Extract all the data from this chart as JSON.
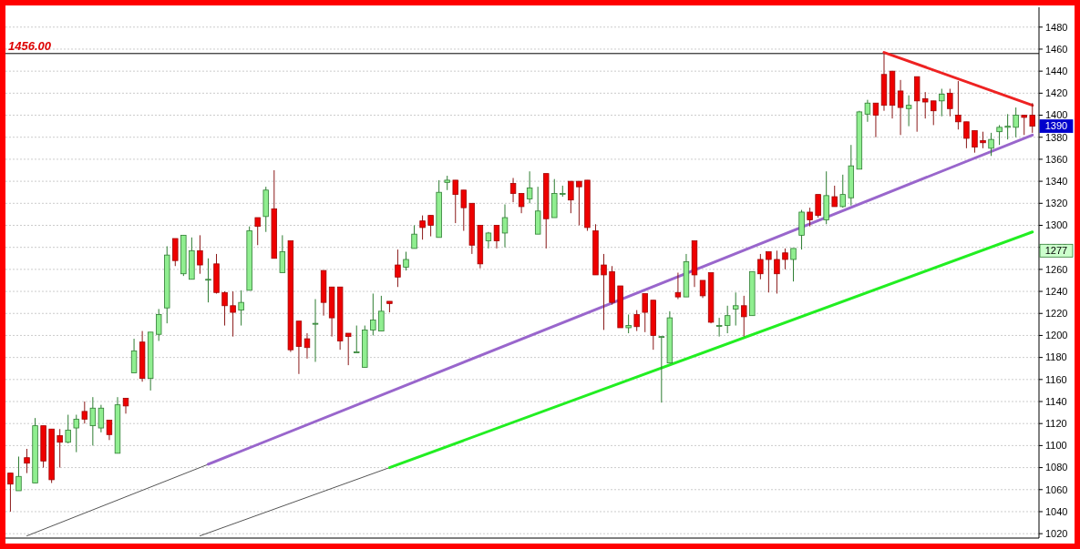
{
  "chart_data": {
    "type": "candlestick",
    "categories": [
      null,
      null,
      null,
      null,
      null,
      null,
      null,
      null,
      null,
      null,
      null,
      null,
      null,
      null,
      null,
      null,
      null,
      null,
      null,
      null,
      null,
      null,
      null,
      null,
      null,
      null,
      null,
      null,
      null,
      null,
      null,
      null,
      null,
      null,
      null,
      null,
      null,
      null,
      null,
      null,
      null,
      null,
      null,
      null,
      null,
      null,
      null,
      null,
      null,
      null,
      null,
      null,
      null,
      null,
      null,
      null,
      null,
      null,
      null,
      null,
      null,
      null,
      null,
      null,
      null,
      null,
      null,
      null,
      null,
      null,
      null,
      null,
      null,
      null,
      null,
      null,
      null,
      null,
      null,
      null,
      null,
      null,
      null,
      null,
      null,
      null,
      null,
      null,
      null,
      null,
      null,
      null,
      null,
      null,
      null,
      null,
      null,
      null,
      null,
      null,
      null,
      null,
      null,
      null,
      null,
      null,
      null,
      null,
      null,
      null,
      null,
      null,
      null,
      null,
      null,
      null,
      null,
      null,
      null,
      null,
      null,
      null,
      null,
      null,
      null
    ],
    "ohlc": [
      [
        1075,
        1075,
        1040,
        1065
      ],
      [
        1059,
        1090,
        1059,
        1072
      ],
      [
        1089,
        1097,
        1075,
        1084
      ],
      [
        1066,
        1125,
        1066,
        1118
      ],
      [
        1118,
        1118,
        1080,
        1086
      ],
      [
        1115,
        1115,
        1066,
        1069
      ],
      [
        1109,
        1115,
        1080,
        1103
      ],
      [
        1103,
        1128,
        1102,
        1114
      ],
      [
        1116,
        1128,
        1094,
        1124
      ],
      [
        1131,
        1140,
        1120,
        1124
      ],
      [
        1118,
        1144,
        1100,
        1134
      ],
      [
        1116,
        1137,
        1112,
        1134
      ],
      [
        1123,
        1123,
        1105,
        1110
      ],
      [
        1093,
        1144,
        1093,
        1137
      ],
      [
        1143,
        1143,
        1129,
        1136
      ],
      [
        1166,
        1197,
        1166,
        1186
      ],
      [
        1194,
        1204,
        1158,
        1161
      ],
      [
        1161,
        1203,
        1150,
        1203
      ],
      [
        1201,
        1224,
        1195,
        1219
      ],
      [
        1225,
        1281,
        1211,
        1273
      ],
      [
        1288,
        1288,
        1263,
        1268
      ],
      [
        1256,
        1291,
        1254,
        1291
      ],
      [
        1251,
        1289,
        1251,
        1277
      ],
      [
        1277,
        1291,
        1256,
        1264
      ],
      [
        1251,
        1270,
        1230,
        1251
      ],
      [
        1265,
        1274,
        1238,
        1239
      ],
      [
        1239,
        1240,
        1209,
        1227
      ],
      [
        1227,
        1240,
        1199,
        1221
      ],
      [
        1223,
        1241,
        1209,
        1230
      ],
      [
        1241,
        1299,
        1241,
        1295
      ],
      [
        1307,
        1307,
        1282,
        1299
      ],
      [
        1308,
        1335,
        1294,
        1332
      ],
      [
        1315,
        1350,
        1270,
        1270
      ],
      [
        1257,
        1291,
        1257,
        1276
      ],
      [
        1286,
        1286,
        1185,
        1187
      ],
      [
        1213,
        1213,
        1165,
        1190
      ],
      [
        1197,
        1202,
        1179,
        1189
      ],
      [
        1211,
        1233,
        1176,
        1211
      ],
      [
        1259,
        1259,
        1218,
        1230
      ],
      [
        1244,
        1244,
        1199,
        1216
      ],
      [
        1244,
        1244,
        1187,
        1195
      ],
      [
        1202,
        1202,
        1173,
        1199
      ],
      [
        1185,
        1209,
        1185,
        1185
      ],
      [
        1171,
        1209,
        1171,
        1205
      ],
      [
        1205,
        1238,
        1200,
        1214
      ],
      [
        1204,
        1236,
        1204,
        1222
      ],
      [
        1231,
        1231,
        1221,
        1229
      ],
      [
        1264,
        1278,
        1244,
        1253
      ],
      [
        1262,
        1276,
        1259,
        1269
      ],
      [
        1279,
        1300,
        1279,
        1292
      ],
      [
        1304,
        1309,
        1287,
        1298
      ],
      [
        1309,
        1309,
        1290,
        1300
      ],
      [
        1289,
        1341,
        1289,
        1330
      ],
      [
        1339,
        1345,
        1332,
        1341
      ],
      [
        1341,
        1341,
        1302,
        1328
      ],
      [
        1332,
        1332,
        1295,
        1316
      ],
      [
        1320,
        1320,
        1274,
        1282
      ],
      [
        1300,
        1300,
        1261,
        1265
      ],
      [
        1286,
        1294,
        1279,
        1293
      ],
      [
        1300,
        1300,
        1279,
        1286
      ],
      [
        1293,
        1319,
        1280,
        1307
      ],
      [
        1338,
        1343,
        1321,
        1329
      ],
      [
        1329,
        1329,
        1311,
        1317
      ],
      [
        1324,
        1349,
        1320,
        1334
      ],
      [
        1292,
        1335,
        1292,
        1313
      ],
      [
        1347,
        1347,
        1279,
        1306
      ],
      [
        1307,
        1342,
        1307,
        1329
      ],
      [
        1329,
        1336,
        1326,
        1329
      ],
      [
        1340,
        1340,
        1311,
        1323
      ],
      [
        1340,
        1340,
        1300,
        1335
      ],
      [
        1341,
        1341,
        1295,
        1298
      ],
      [
        1295,
        1301,
        1255,
        1255
      ],
      [
        1264,
        1274,
        1205,
        1255
      ],
      [
        1258,
        1263,
        1228,
        1230
      ],
      [
        1245,
        1245,
        1207,
        1207
      ],
      [
        1207,
        1219,
        1202,
        1209
      ],
      [
        1219,
        1223,
        1204,
        1208
      ],
      [
        1238,
        1238,
        1203,
        1221
      ],
      [
        1232,
        1232,
        1187,
        1200
      ],
      [
        1199,
        1199,
        1139,
        1199
      ],
      [
        1175,
        1222,
        1175,
        1216
      ],
      [
        1239,
        1257,
        1233,
        1235
      ],
      [
        1235,
        1274,
        1235,
        1267
      ],
      [
        1286,
        1286,
        1244,
        1255
      ],
      [
        1250,
        1250,
        1234,
        1236
      ],
      [
        1257,
        1257,
        1211,
        1212
      ],
      [
        1209,
        1216,
        1199,
        1209
      ],
      [
        1209,
        1227,
        1202,
        1218
      ],
      [
        1224,
        1239,
        1209,
        1227
      ],
      [
        1227,
        1236,
        1199,
        1217
      ],
      [
        1218,
        1258,
        1218,
        1258
      ],
      [
        1269,
        1274,
        1251,
        1256
      ],
      [
        1276,
        1276,
        1239,
        1269
      ],
      [
        1269,
        1277,
        1238,
        1256
      ],
      [
        1275,
        1279,
        1260,
        1269
      ],
      [
        1269,
        1279,
        1249,
        1279
      ],
      [
        1291,
        1314,
        1278,
        1312
      ],
      [
        1312,
        1316,
        1299,
        1305
      ],
      [
        1328,
        1328,
        1307,
        1309
      ],
      [
        1305,
        1349,
        1301,
        1327
      ],
      [
        1326,
        1336,
        1317,
        1317
      ],
      [
        1317,
        1346,
        1316,
        1328
      ],
      [
        1325,
        1373,
        1318,
        1354
      ],
      [
        1351,
        1404,
        1351,
        1403
      ],
      [
        1401,
        1414,
        1394,
        1411
      ],
      [
        1411,
        1411,
        1380,
        1400
      ],
      [
        1437,
        1456,
        1404,
        1409
      ],
      [
        1440,
        1440,
        1397,
        1409
      ],
      [
        1422,
        1432,
        1382,
        1407
      ],
      [
        1406,
        1418,
        1390,
        1409
      ],
      [
        1435,
        1435,
        1385,
        1413
      ],
      [
        1415,
        1421,
        1397,
        1412
      ],
      [
        1413,
        1413,
        1391,
        1404
      ],
      [
        1413,
        1424,
        1399,
        1419
      ],
      [
        1420,
        1424,
        1399,
        1406
      ],
      [
        1400,
        1431,
        1387,
        1394
      ],
      [
        1394,
        1394,
        1370,
        1379
      ],
      [
        1386,
        1386,
        1366,
        1371
      ],
      [
        1377,
        1385,
        1370,
        1375
      ],
      [
        1370,
        1384,
        1363,
        1378
      ],
      [
        1385,
        1391,
        1373,
        1389
      ],
      [
        1389,
        1401,
        1378,
        1390
      ],
      [
        1389,
        1407,
        1380,
        1400
      ],
      [
        1400,
        1400,
        1382,
        1398
      ],
      [
        1400,
        1411,
        1384,
        1390
      ]
    ],
    "series": [
      {
        "type": "line",
        "color": "#555555",
        "values": [
          null,
          null,
          1018,
          null,
          null,
          null,
          null,
          null,
          null,
          null,
          null,
          null,
          null,
          null,
          null,
          null,
          null,
          null,
          null,
          null,
          null,
          null,
          null,
          null,
          1083,
          null,
          null,
          null,
          null,
          null,
          null,
          null,
          null,
          null,
          null,
          null,
          null,
          null,
          null,
          null,
          null,
          null,
          null,
          null,
          null,
          null,
          null,
          null,
          null,
          null,
          null,
          null,
          null,
          null,
          null,
          null,
          null,
          null,
          null,
          null,
          null,
          null,
          null,
          null,
          null,
          null,
          null,
          null,
          null,
          null,
          null,
          null,
          null,
          null,
          null,
          null,
          null,
          null,
          null,
          null,
          null,
          null,
          null,
          null,
          null,
          null,
          null,
          null,
          null,
          null,
          null,
          null,
          null,
          null,
          null,
          null,
          null,
          null,
          null,
          null,
          null,
          null,
          null,
          null,
          null,
          null,
          null,
          null,
          null,
          null,
          null,
          null,
          null,
          null,
          null,
          null,
          null,
          null,
          null,
          null,
          null,
          null,
          null,
          null,
          null
        ]
      },
      {
        "type": "line",
        "color": "#9966cc",
        "values": [
          null,
          null,
          null,
          null,
          null,
          null,
          null,
          null,
          null,
          null,
          null,
          null,
          null,
          null,
          null,
          null,
          null,
          null,
          null,
          null,
          null,
          null,
          null,
          null,
          1083,
          null,
          null,
          null,
          null,
          null,
          null,
          null,
          null,
          null,
          null,
          null,
          null,
          null,
          null,
          null,
          null,
          null,
          null,
          null,
          null,
          null,
          null,
          null,
          null,
          null,
          null,
          null,
          null,
          null,
          null,
          null,
          null,
          null,
          null,
          null,
          null,
          null,
          null,
          null,
          null,
          null,
          null,
          null,
          null,
          null,
          null,
          null,
          null,
          null,
          null,
          null,
          null,
          null,
          null,
          null,
          null,
          null,
          null,
          null,
          null,
          null,
          null,
          null,
          null,
          null,
          null,
          null,
          null,
          null,
          null,
          null,
          null,
          null,
          null,
          null,
          null,
          null,
          null,
          null,
          null,
          null,
          null,
          null,
          null,
          null,
          null,
          null,
          null,
          null,
          null,
          null,
          null,
          null,
          null,
          null,
          null,
          null,
          null,
          null,
          1382
        ]
      },
      {
        "type": "line",
        "color": "#555555",
        "values": [
          null,
          null,
          null,
          null,
          null,
          null,
          null,
          null,
          null,
          null,
          null,
          null,
          null,
          null,
          null,
          null,
          null,
          null,
          null,
          null,
          null,
          null,
          null,
          1018,
          null,
          null,
          null,
          null,
          null,
          null,
          null,
          null,
          null,
          null,
          null,
          null,
          null,
          null,
          null,
          null,
          null,
          null,
          null,
          null,
          null,
          null,
          1080,
          null,
          null,
          null,
          null,
          null,
          null,
          null,
          null,
          null,
          null,
          null,
          null,
          null,
          null,
          null,
          null,
          null,
          null,
          null,
          null,
          null,
          null,
          null,
          null,
          null,
          null,
          null,
          null,
          null,
          null,
          null,
          null,
          null,
          null,
          null,
          null,
          null,
          null,
          null,
          null,
          null,
          null,
          null,
          null,
          null,
          null,
          null,
          null,
          null,
          null,
          null,
          null,
          null,
          null,
          null,
          null,
          null,
          null,
          null,
          null,
          null,
          null,
          null,
          null,
          null,
          null,
          null,
          null,
          null,
          null,
          null,
          null,
          null,
          null,
          null,
          null,
          null,
          null
        ]
      },
      {
        "type": "line",
        "color": "#22ee22",
        "values": [
          null,
          null,
          null,
          null,
          null,
          null,
          null,
          null,
          null,
          null,
          null,
          null,
          null,
          null,
          null,
          null,
          null,
          null,
          null,
          null,
          null,
          null,
          null,
          null,
          null,
          null,
          null,
          null,
          null,
          null,
          null,
          null,
          null,
          null,
          null,
          null,
          null,
          null,
          null,
          null,
          null,
          null,
          null,
          null,
          null,
          null,
          1080,
          null,
          null,
          null,
          null,
          null,
          null,
          null,
          null,
          null,
          null,
          null,
          null,
          null,
          null,
          null,
          null,
          null,
          null,
          null,
          null,
          null,
          null,
          null,
          null,
          null,
          null,
          null,
          null,
          null,
          null,
          null,
          null,
          null,
          null,
          null,
          null,
          null,
          null,
          null,
          null,
          null,
          null,
          null,
          null,
          null,
          null,
          null,
          null,
          null,
          null,
          null,
          null,
          null,
          null,
          null,
          null,
          null,
          null,
          null,
          null,
          null,
          null,
          null,
          null,
          null,
          null,
          null,
          null,
          null,
          null,
          null,
          null,
          null,
          null,
          null,
          null,
          null,
          1294
        ]
      },
      {
        "type": "line",
        "color": "#ee2222",
        "values": [
          null,
          null,
          null,
          null,
          null,
          null,
          null,
          null,
          null,
          null,
          null,
          null,
          null,
          null,
          null,
          null,
          null,
          null,
          null,
          null,
          null,
          null,
          null,
          null,
          null,
          null,
          null,
          null,
          null,
          null,
          null,
          null,
          null,
          null,
          null,
          null,
          null,
          null,
          null,
          null,
          null,
          null,
          null,
          null,
          null,
          null,
          null,
          null,
          null,
          null,
          null,
          null,
          null,
          null,
          null,
          null,
          null,
          null,
          null,
          null,
          null,
          null,
          null,
          null,
          null,
          null,
          null,
          null,
          null,
          null,
          null,
          null,
          null,
          null,
          null,
          null,
          null,
          null,
          null,
          null,
          null,
          null,
          null,
          null,
          null,
          null,
          null,
          null,
          null,
          null,
          null,
          null,
          null,
          null,
          null,
          null,
          null,
          null,
          null,
          null,
          null,
          null,
          null,
          null,
          null,
          null,
          1457,
          null,
          null,
          null,
          null,
          null,
          null,
          null,
          null,
          null,
          null,
          null,
          null,
          null,
          null,
          null,
          null,
          null,
          1409
        ]
      }
    ],
    "ylim": [
      1016,
      1498
    ],
    "yticks": [
      1020,
      1040,
      1060,
      1080,
      1100,
      1120,
      1140,
      1160,
      1180,
      1200,
      1220,
      1240,
      1260,
      1280,
      1300,
      1320,
      1340,
      1360,
      1380,
      1400,
      1420,
      1440,
      1460,
      1480
    ],
    "grid": "y",
    "ref_lines": [
      {
        "axis": "y",
        "value": 1456,
        "label": "1456.00",
        "color": "#000000"
      }
    ],
    "annotations": [
      {
        "text": "1390",
        "y": 1390
      },
      {
        "text": "1277",
        "y": 1277
      }
    ]
  }
}
